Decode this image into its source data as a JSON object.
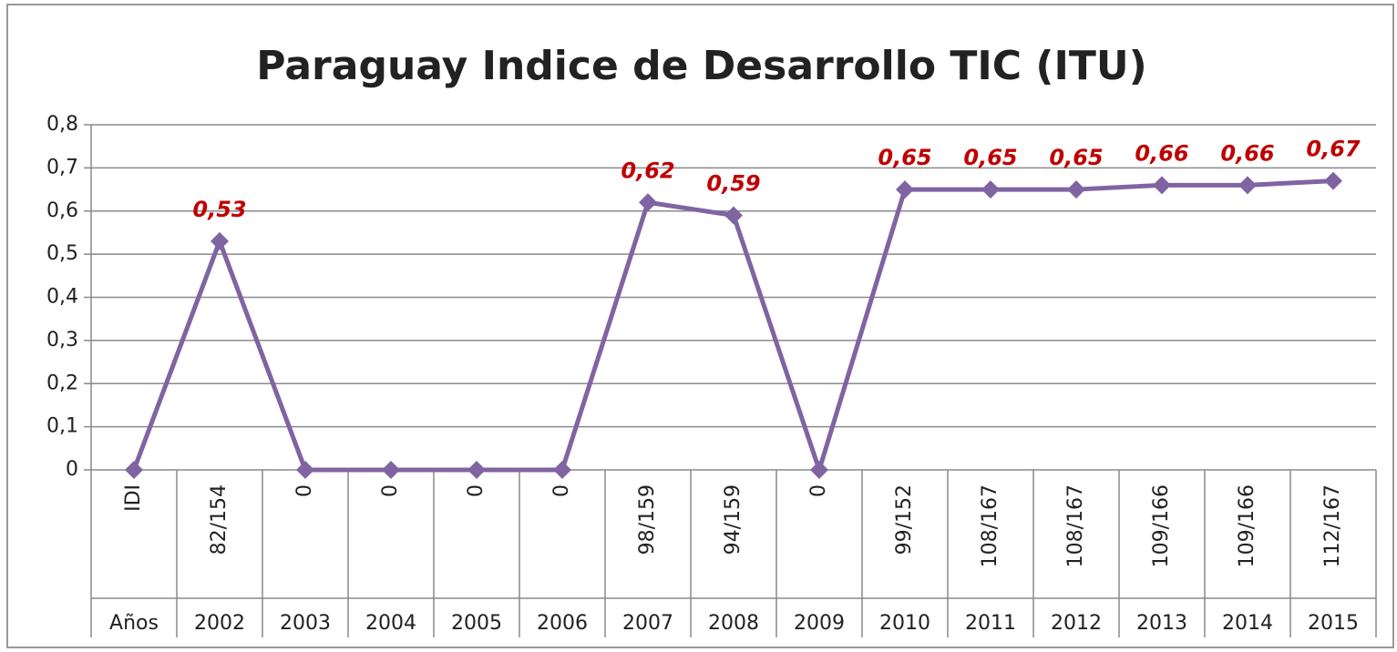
{
  "chart_data": {
    "type": "line",
    "title": "Paraguay Indice de Desarrollo TIC (ITU)",
    "categories": [
      "IDI",
      "82/154",
      "0",
      "0",
      "0",
      "0",
      "98/159",
      "94/159",
      "0",
      "99/152",
      "108/167",
      "108/167",
      "109/166",
      "109/166",
      "112/167"
    ],
    "years": [
      "Años",
      "2002",
      "2003",
      "2004",
      "2005",
      "2006",
      "2007",
      "2008",
      "2009",
      "2010",
      "2011",
      "2012",
      "2013",
      "2014",
      "2015"
    ],
    "series": [
      {
        "color": "#8064a2",
        "values": [
          0,
          0.53,
          0,
          0,
          0,
          0,
          0.62,
          0.59,
          0,
          0.65,
          0.65,
          0.65,
          0.66,
          0.66,
          0.67
        ],
        "value_labels": [
          null,
          "0,53",
          null,
          null,
          null,
          null,
          "0,62",
          "0,59",
          null,
          "0,65",
          "0,65",
          "0,65",
          "0,66",
          "0,66",
          "0,67"
        ]
      }
    ],
    "ylim": [
      0,
      0.8
    ],
    "yticks": [
      0,
      {
        "value": 0.1,
        "label": "0,1"
      },
      {
        "value": 0.2,
        "label": "0,2"
      },
      {
        "value": 0.3,
        "label": "0,3"
      },
      {
        "value": 0.4,
        "label": "0,4"
      },
      {
        "value": 0.5,
        "label": "0,5"
      },
      {
        "value": 0.6,
        "label": "0,6"
      },
      {
        "value": 0.7,
        "label": "0,7"
      },
      {
        "value": 0.8,
        "label": "0,8"
      }
    ],
    "grid": true,
    "label_color": "#c00000"
  }
}
